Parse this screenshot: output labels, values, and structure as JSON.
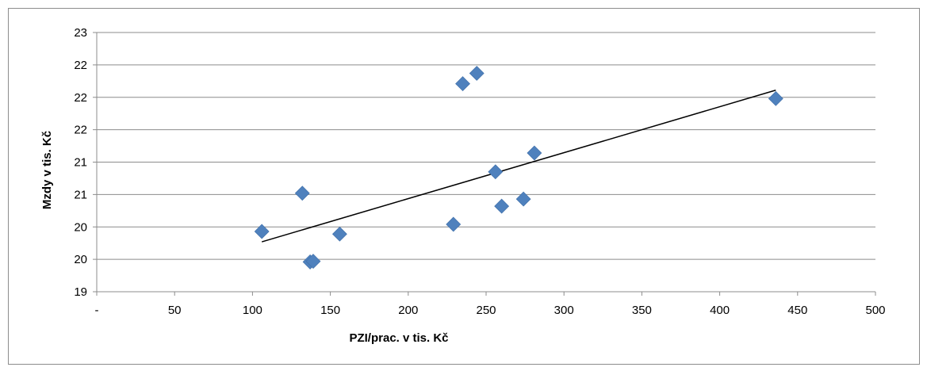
{
  "chart_data": {
    "type": "scatter",
    "xlabel": "PZI/prac. v tis. Kč",
    "ylabel": "Mzdy v tis. Kč",
    "xlim": [
      0,
      500
    ],
    "ylim": [
      19,
      23
    ],
    "x_ticks": [
      0,
      50,
      100,
      150,
      200,
      250,
      300,
      350,
      400,
      450,
      500
    ],
    "x_tick_labels": [
      "-",
      "50",
      "100",
      "150",
      "200",
      "250",
      "300",
      "350",
      "400",
      "450",
      "500"
    ],
    "y_ticks": [
      19,
      19.5,
      20,
      20.5,
      21,
      21.5,
      22,
      22.5,
      23
    ],
    "y_tick_labels": [
      "19",
      "20",
      "20",
      "21",
      "21",
      "22",
      "22",
      "22",
      "23"
    ],
    "grid": "horizontal",
    "marker": "diamond",
    "point_color": "#4f81bd",
    "trendline_color": "#000000",
    "series": [
      {
        "points": [
          {
            "x": 106,
            "y": 19.93
          },
          {
            "x": 132,
            "y": 20.52
          },
          {
            "x": 137,
            "y": 19.46
          },
          {
            "x": 139,
            "y": 19.47
          },
          {
            "x": 156,
            "y": 19.89
          },
          {
            "x": 229,
            "y": 20.04
          },
          {
            "x": 235,
            "y": 22.21
          },
          {
            "x": 244,
            "y": 22.37
          },
          {
            "x": 256,
            "y": 20.85
          },
          {
            "x": 260,
            "y": 20.32
          },
          {
            "x": 274,
            "y": 20.43
          },
          {
            "x": 281,
            "y": 21.14
          },
          {
            "x": 436,
            "y": 21.98
          }
        ]
      }
    ],
    "trendline": {
      "x": [
        106,
        436
      ],
      "y": [
        19.77,
        22.11
      ]
    }
  }
}
